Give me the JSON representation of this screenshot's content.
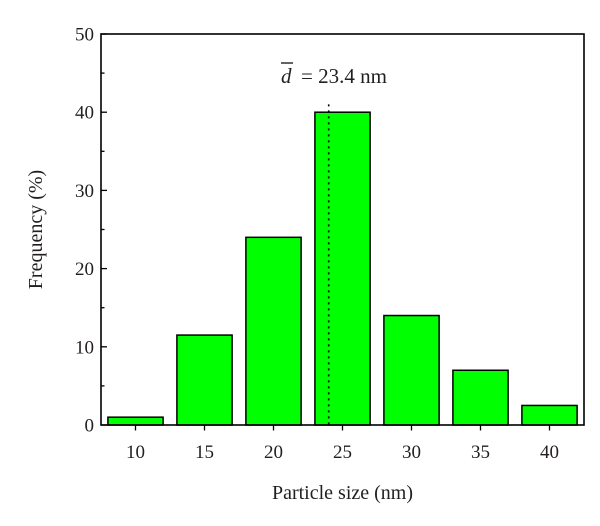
{
  "chart_data": {
    "type": "bar",
    "categories": [
      "10",
      "15",
      "20",
      "25",
      "30",
      "35",
      "40"
    ],
    "x": [
      10,
      15,
      20,
      25,
      30,
      35,
      40
    ],
    "values": [
      1,
      11.5,
      24,
      40,
      14,
      7,
      2.5
    ],
    "title": "",
    "xlabel": "Particle size (nm)",
    "ylabel": "Frequency (%)",
    "xlim": [
      7.5,
      42.5
    ],
    "ylim": [
      0,
      50
    ],
    "yticks": [
      0,
      10,
      20,
      30,
      40,
      50
    ],
    "grid": false,
    "legend": "none",
    "bar_color": "#00ff00",
    "bar_edge_color": "#000000",
    "annotation": {
      "symbol": "d",
      "text": "= 23.4 nm",
      "mean_x": 24
    }
  }
}
